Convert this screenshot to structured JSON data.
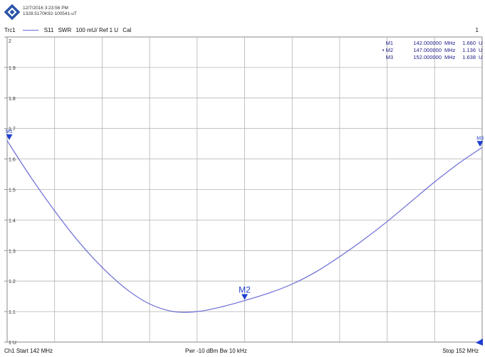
{
  "header": {
    "timestamp": "12/7/2016 3:23:56 PM",
    "instrument_id": "1328.5170K92-100541-uT"
  },
  "trace_row": {
    "trace": "Trc1",
    "param": "S11",
    "format": "SWR",
    "scale": "100 mU/ Ref 1 U",
    "cal": "Cal",
    "channel_num": "1"
  },
  "markers": [
    {
      "name": "M1",
      "active": false,
      "freq": "142.000000",
      "freq_unit": "MHz",
      "value": "1.660",
      "unit": "U"
    },
    {
      "name": "M2",
      "active": true,
      "freq": "147.000000",
      "freq_unit": "MHz",
      "value": "1.136",
      "unit": "U"
    },
    {
      "name": "M3",
      "active": false,
      "freq": "152.000000",
      "freq_unit": "MHz",
      "value": "1.638",
      "unit": "U"
    }
  ],
  "footer": {
    "start": "Ch1  Start  142 MHz",
    "pwr_bw": "Pwr  -10 dBm  Bw  10 kHz",
    "stop": "Stop  152 MHz"
  },
  "colors": {
    "trace": "#6b6bd6",
    "marker": "#1f3fd0",
    "grid": "#b3b3b3"
  },
  "chart_data": {
    "type": "line",
    "xlim": [
      142,
      152
    ],
    "ylim": [
      1,
      2
    ],
    "x_grid_divisions": 10,
    "y_ticks": [
      1,
      1.1,
      1.2,
      1.3,
      1.4,
      1.5,
      1.6,
      1.7,
      1.8,
      1.9,
      2
    ],
    "y_tick_labels": [
      "1 U",
      "1.1",
      "1.2",
      "1.3",
      "1.4",
      "1.5",
      "1.6",
      "1.7",
      "1.8",
      "1.9",
      "2"
    ],
    "series": [
      {
        "name": "Trc1",
        "x": [
          142,
          142.5,
          143,
          143.5,
          144,
          144.5,
          145,
          145.5,
          146,
          146.5,
          147,
          147.5,
          148,
          148.5,
          149,
          149.5,
          150,
          150.5,
          151,
          151.5,
          152
        ],
        "y": [
          1.66,
          1.54,
          1.43,
          1.33,
          1.245,
          1.175,
          1.125,
          1.1,
          1.1,
          1.115,
          1.136,
          1.16,
          1.19,
          1.23,
          1.28,
          1.335,
          1.395,
          1.46,
          1.525,
          1.585,
          1.638
        ]
      }
    ],
    "marker_points": [
      {
        "name": "M1",
        "x": 142,
        "y": 1.66
      },
      {
        "name": "M2",
        "x": 147,
        "y": 1.136
      },
      {
        "name": "M3",
        "x": 152,
        "y": 1.638
      }
    ]
  }
}
